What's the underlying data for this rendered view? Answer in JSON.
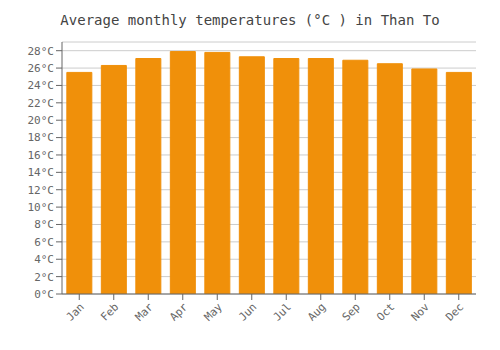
{
  "chart_data": {
    "type": "bar",
    "title": "Average monthly temperatures (°C ) in Than To",
    "categories": [
      "Jan",
      "Feb",
      "Mar",
      "Apr",
      "May",
      "Jun",
      "Jul",
      "Aug",
      "Sep",
      "Oct",
      "Nov",
      "Dec"
    ],
    "values": [
      25.5,
      26.3,
      27.1,
      27.9,
      27.8,
      27.3,
      27.1,
      27.1,
      26.9,
      26.5,
      25.9,
      25.5
    ],
    "color": "#F0900A",
    "ylim": [
      0,
      29
    ],
    "yticks": [
      {
        "value": 0,
        "label": "0°C"
      },
      {
        "value": 2,
        "label": "2°C"
      },
      {
        "value": 4,
        "label": "4°C"
      },
      {
        "value": 6,
        "label": "6°C"
      },
      {
        "value": 8,
        "label": "8°C"
      },
      {
        "value": 10,
        "label": "10°C"
      },
      {
        "value": 12,
        "label": "12°C"
      },
      {
        "value": 14,
        "label": "14°C"
      },
      {
        "value": 16,
        "label": "16°C"
      },
      {
        "value": 18,
        "label": "18°C"
      },
      {
        "value": 20,
        "label": "20°C"
      },
      {
        "value": 22,
        "label": "22°C"
      },
      {
        "value": 24,
        "label": "24°C"
      },
      {
        "value": 26,
        "label": "26°C"
      },
      {
        "value": 28,
        "label": "28°C"
      }
    ],
    "grid": true
  }
}
